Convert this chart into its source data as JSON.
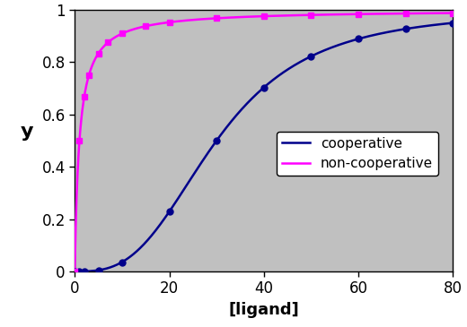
{
  "title": "",
  "xlabel": "[ligand]",
  "ylabel": "y",
  "xlim": [
    0,
    80
  ],
  "ylim": [
    0,
    1
  ],
  "xticks": [
    0,
    20,
    40,
    60,
    80
  ],
  "yticks": [
    0,
    0.2,
    0.4,
    0.6,
    0.8,
    1.0
  ],
  "cooperative_color": "#00008B",
  "noncooperative_color": "#FF00FF",
  "cooperative_label": "cooperative",
  "noncooperative_label": "non-cooperative",
  "hill_n": 3,
  "hill_K": 30,
  "simple_K": 1,
  "plot_bg_color": "#C0C0C0",
  "fig_bg_color": "#FFFFFF",
  "marker_coop": "o",
  "marker_noncoop": "s",
  "marker_size": 5,
  "line_width": 1.8,
  "x_label_fontsize": 13,
  "y_label_fontsize": 16,
  "tick_fontsize": 12,
  "legend_fontsize": 11,
  "x_markers_coop": [
    0,
    1,
    2,
    5,
    10,
    20,
    30,
    40,
    50,
    60,
    70,
    80
  ],
  "x_markers_nc": [
    0,
    1,
    2,
    3,
    5,
    7,
    10,
    15,
    20,
    30,
    40,
    50,
    60,
    70,
    80
  ]
}
